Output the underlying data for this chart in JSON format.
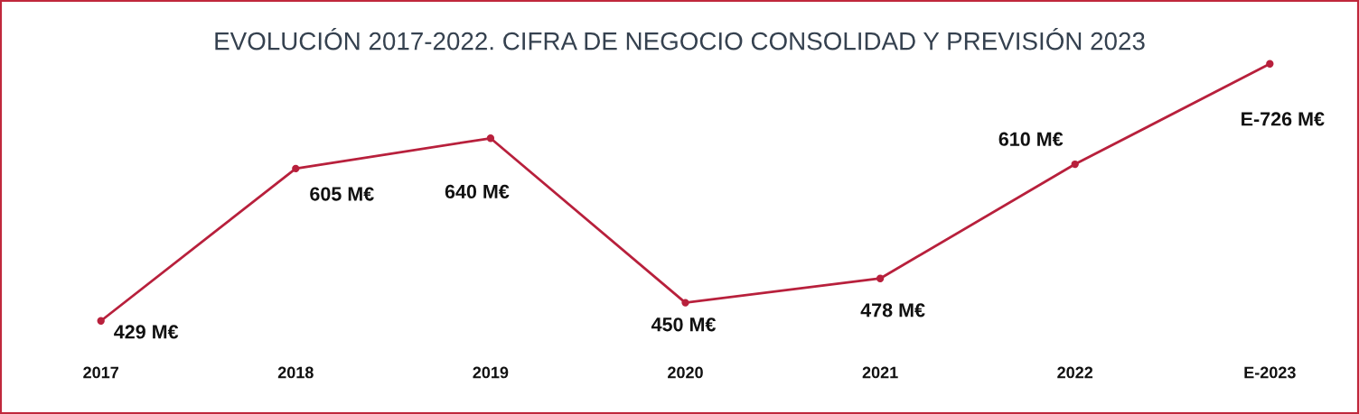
{
  "chart_data": {
    "type": "line",
    "title": "EVOLUCIÓN 2017-2022. CIFRA DE NEGOCIO CONSOLIDAD Y PREVISIÓN 2023",
    "categories": [
      "2017",
      "2018",
      "2019",
      "2020",
      "2021",
      "2022",
      "E-2023"
    ],
    "series": [
      {
        "color": "#b8203c",
        "values": [
          429,
          605,
          640,
          450,
          478,
          610,
          726
        ],
        "value_labels": [
          "429 M€",
          "605 M€",
          "640 M€",
          "450 M€",
          "478 M€",
          "610 M€",
          "E-726 M€"
        ]
      }
    ],
    "marker": "circle",
    "line_style": "solid",
    "tick_labels": "x"
  }
}
